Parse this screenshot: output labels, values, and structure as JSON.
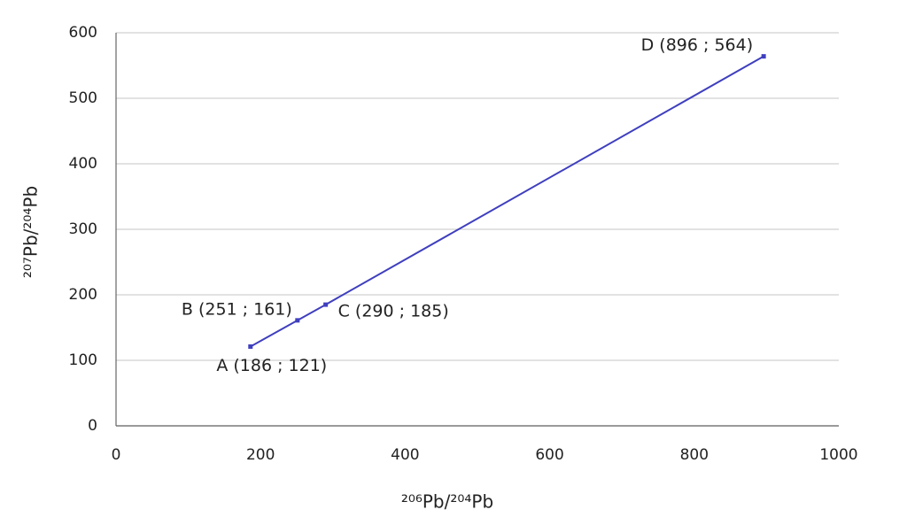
{
  "chart_data": {
    "type": "line",
    "x": [
      186,
      251,
      290,
      896
    ],
    "series": [
      {
        "color": "#3f3fbf",
        "values": [
          121,
          161,
          185,
          564
        ]
      }
    ],
    "value_labels": [
      "A (186 ; 121)",
      "B (251 ; 161)",
      "C (290 ; 185)",
      "D (896 ; 564)"
    ],
    "xlabel": "²⁰⁶Pb/²⁰⁴Pb",
    "ylabel": "²⁰⁷Pb/²⁰⁴Pb",
    "xlim": [
      0,
      1000
    ],
    "xticks": [
      0,
      200,
      400,
      600,
      800,
      1000
    ],
    "ylim": [
      0,
      600
    ],
    "yticks": [
      0,
      100,
      200,
      300,
      400,
      500,
      600
    ],
    "grid": true
  }
}
